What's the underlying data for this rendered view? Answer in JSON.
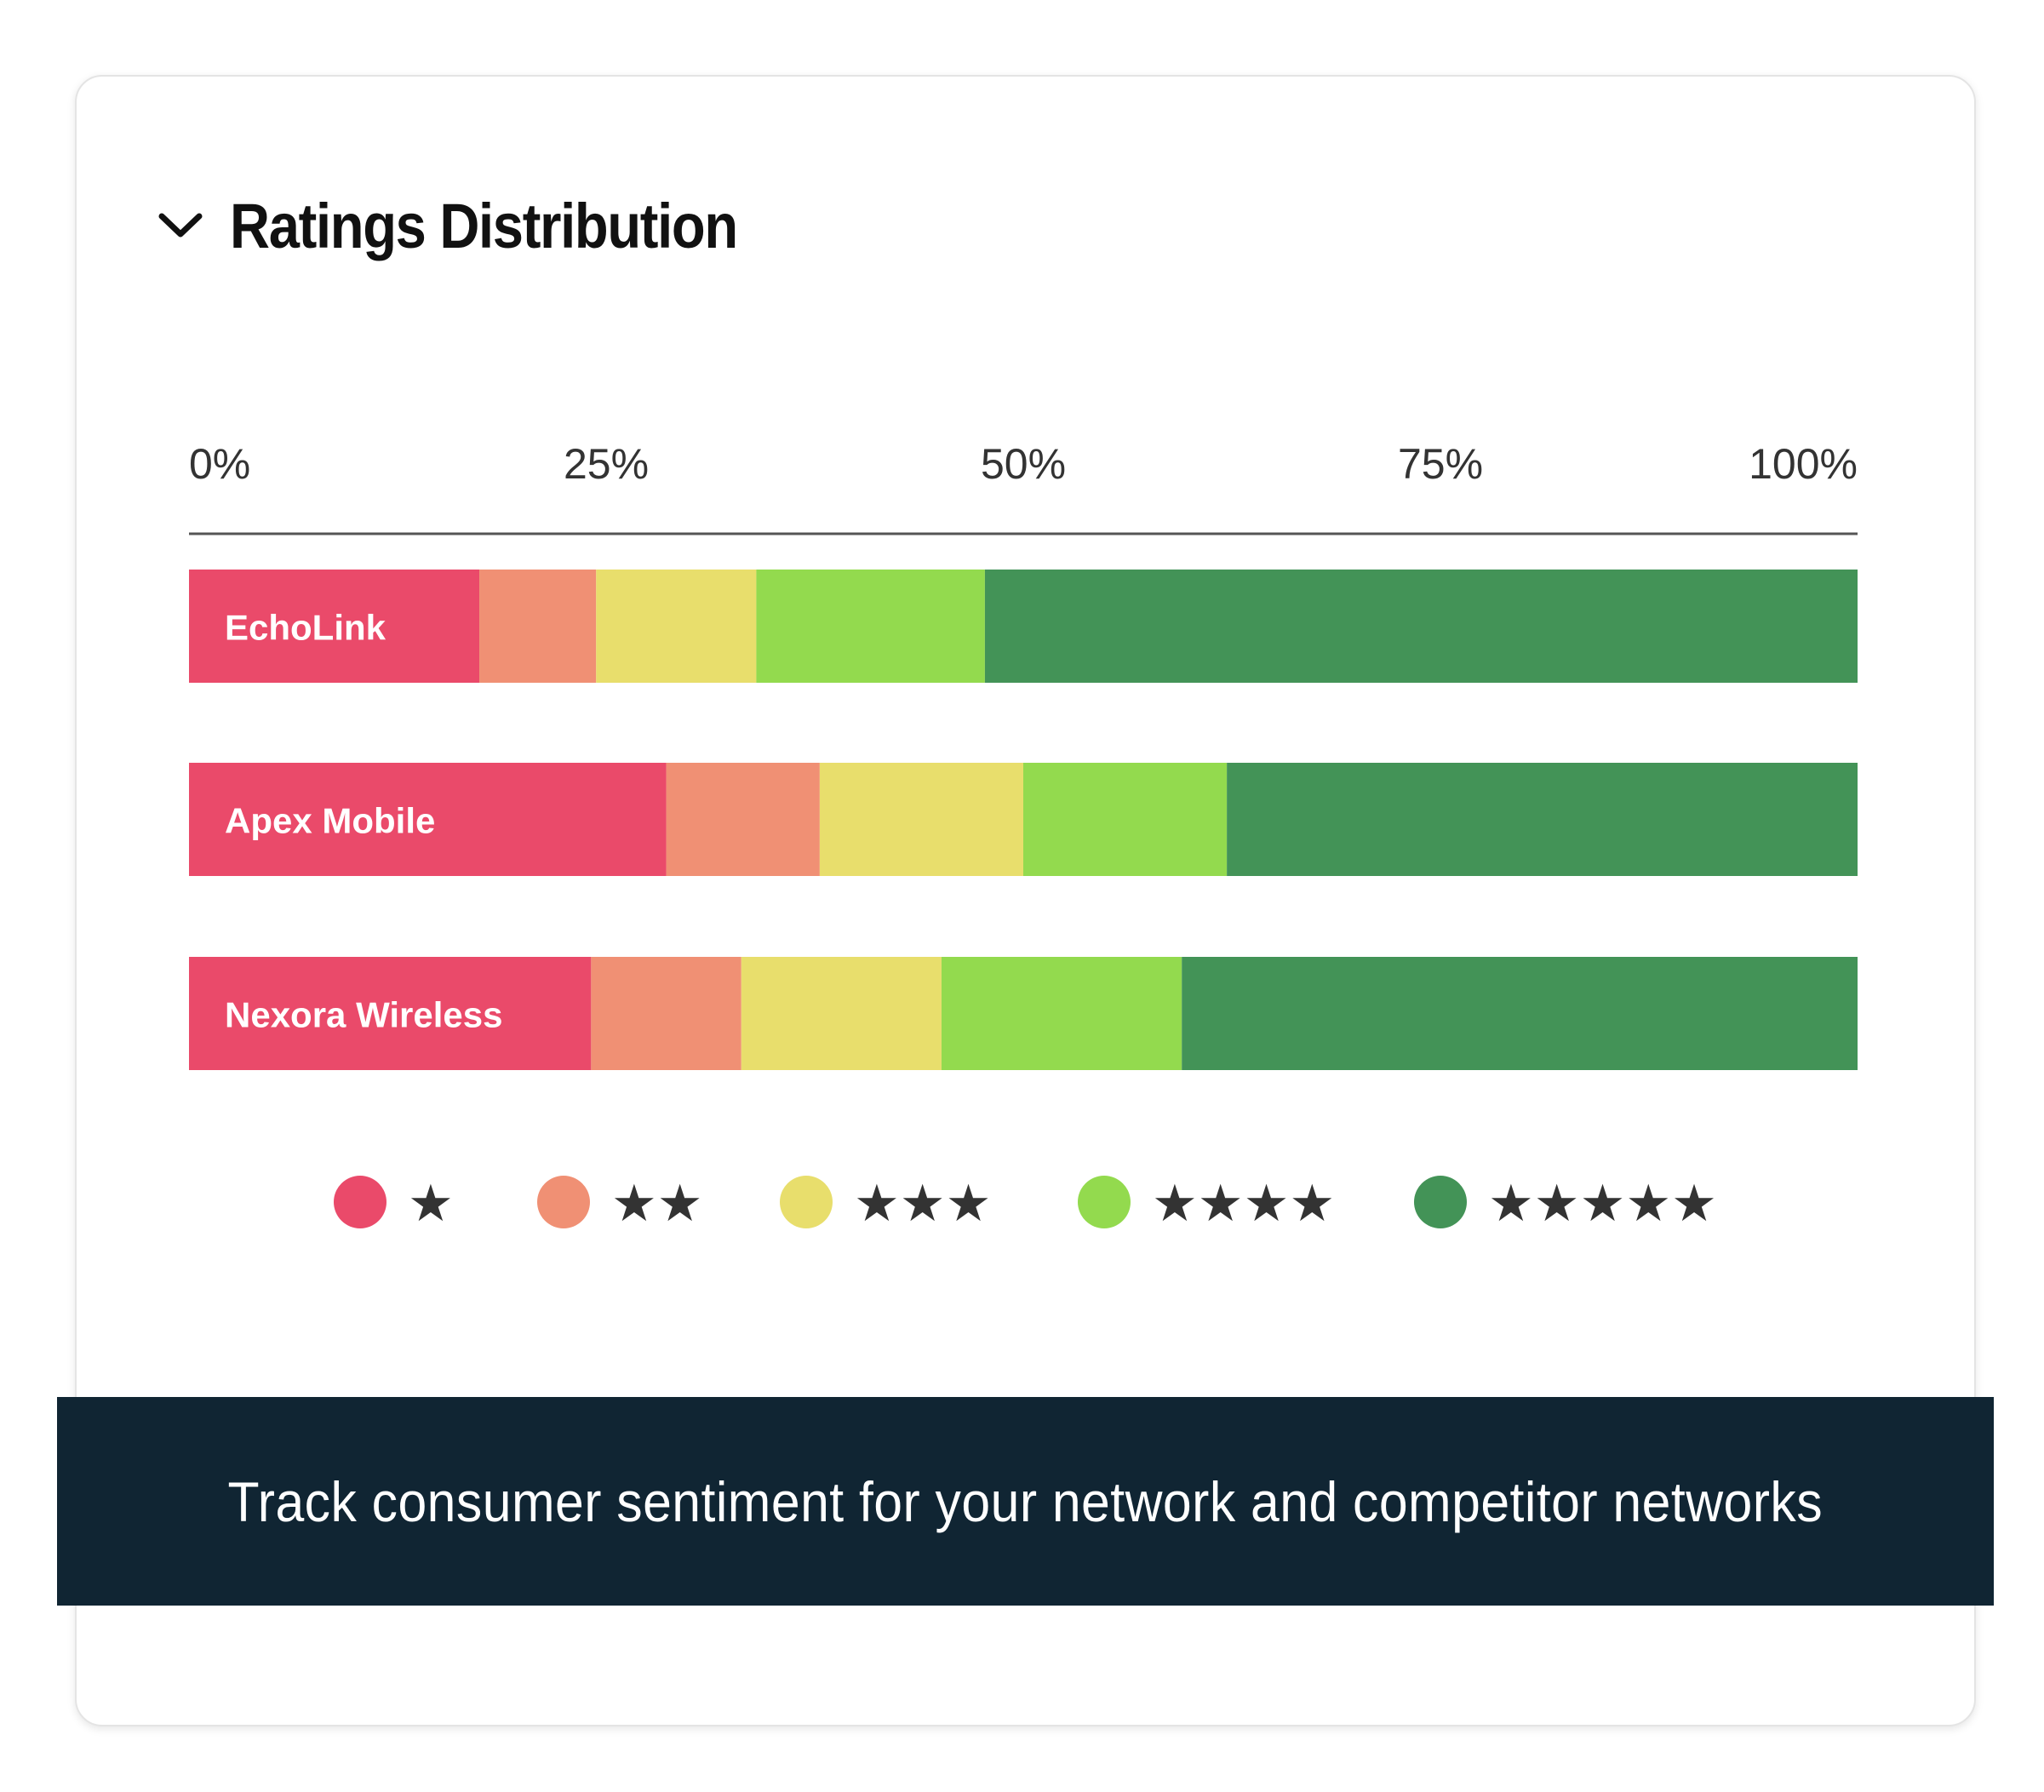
{
  "header": {
    "title": "Ratings Distribution",
    "toggle_icon": "chevron-down-icon"
  },
  "banner": {
    "text": "Track consumer sentiment for your network and competitor networks"
  },
  "colors": {
    "one_star": "#EA4A6A",
    "two_star": "#F09074",
    "three_star": "#E8DE6C",
    "four_star": "#93DA4E",
    "five_star": "#439357",
    "axis": "#555555",
    "banner_bg": "#102533"
  },
  "chart_data": {
    "type": "bar",
    "orientation": "horizontal",
    "stacked": true,
    "normalized": true,
    "categories": [
      "EchoLink",
      "Apex Mobile",
      "Nexora Wireless"
    ],
    "x_ticks": [
      "0%",
      "25%",
      "50%",
      "75%",
      "100%"
    ],
    "xlim": [
      0,
      100
    ],
    "grid": false,
    "legend_position": "bottom",
    "series": [
      {
        "name": "★",
        "color": "#EA4A6A",
        "values": [
          17.4,
          28.6,
          24.1
        ]
      },
      {
        "name": "★★",
        "color": "#F09074",
        "values": [
          7.0,
          9.2,
          9.0
        ]
      },
      {
        "name": "★★★",
        "color": "#E8DE6C",
        "values": [
          9.6,
          12.2,
          12.0
        ]
      },
      {
        "name": "★★★★",
        "color": "#93DA4E",
        "values": [
          13.7,
          12.2,
          14.4
        ]
      },
      {
        "name": "★★★★★",
        "color": "#439357",
        "values": [
          52.3,
          37.8,
          40.5
        ]
      }
    ]
  }
}
